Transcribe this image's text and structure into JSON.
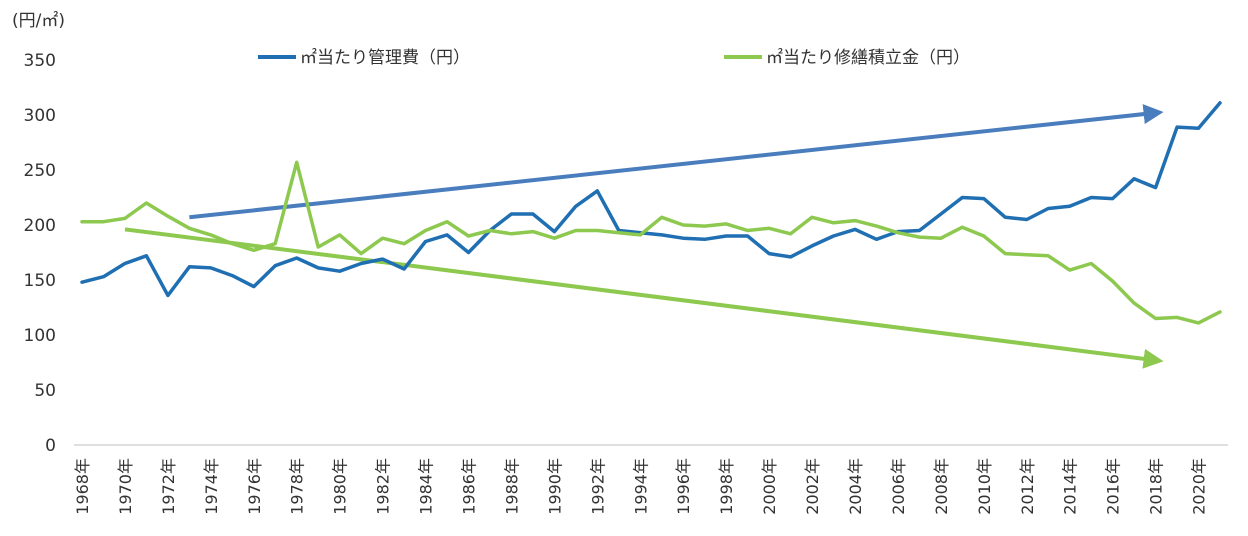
{
  "chart_data": {
    "type": "line",
    "unit_label": "(円/㎡)",
    "ylim": [
      0,
      350
    ],
    "yticks": [
      0,
      50,
      100,
      150,
      200,
      250,
      300,
      350
    ],
    "x": [
      1968,
      1969,
      1970,
      1971,
      1972,
      1973,
      1974,
      1975,
      1976,
      1977,
      1978,
      1979,
      1980,
      1981,
      1982,
      1983,
      1984,
      1985,
      1986,
      1987,
      1988,
      1989,
      1990,
      1991,
      1992,
      1993,
      1994,
      1995,
      1996,
      1997,
      1998,
      1999,
      2000,
      2001,
      2002,
      2003,
      2004,
      2005,
      2006,
      2007,
      2008,
      2009,
      2010,
      2011,
      2012,
      2013,
      2014,
      2015,
      2016,
      2017,
      2018,
      2019,
      2020,
      2021
    ],
    "xtick_labels": [
      "1968年",
      "1970年",
      "1972年",
      "1974年",
      "1976年",
      "1978年",
      "1980年",
      "1982年",
      "1984年",
      "1986年",
      "1988年",
      "1990年",
      "1992年",
      "1994年",
      "1996年",
      "1998年",
      "2000年",
      "2002年",
      "2004年",
      "2006年",
      "2008年",
      "2010年",
      "2012年",
      "2014年",
      "2016年",
      "2018年",
      "2020年"
    ],
    "grid": false,
    "legend_position": "top",
    "series": [
      {
        "name": "㎡当たり管理費（円）",
        "color": "#1f6fb2",
        "values": [
          148,
          153,
          165,
          172,
          136,
          162,
          161,
          154,
          144,
          163,
          170,
          161,
          158,
          165,
          169,
          160,
          185,
          191,
          175,
          195,
          210,
          210,
          194,
          217,
          231,
          195,
          193,
          191,
          188,
          187,
          190,
          190,
          174,
          171,
          181,
          190,
          196,
          187,
          194,
          195,
          210,
          225,
          224,
          207,
          205,
          215,
          217,
          225,
          224,
          242,
          234,
          289,
          288,
          311
        ]
      },
      {
        "name": "㎡当たり修繕積立金（円）",
        "color": "#8dc84f",
        "values": [
          203,
          203,
          206,
          220,
          208,
          197,
          191,
          183,
          177,
          183,
          257,
          180,
          191,
          174,
          188,
          183,
          195,
          203,
          190,
          195,
          192,
          194,
          188,
          195,
          195,
          193,
          191,
          207,
          200,
          199,
          201,
          195,
          197,
          192,
          207,
          202,
          204,
          199,
          193,
          189,
          188,
          198,
          190,
          174,
          173,
          172,
          159,
          165,
          149,
          129,
          115,
          116,
          111,
          121
        ]
      }
    ],
    "trend_arrows": [
      {
        "color": "#4a7dbd",
        "from": [
          1973,
          207
        ],
        "to": [
          2018,
          302
        ]
      },
      {
        "color": "#8dc84f",
        "from": [
          1970,
          196
        ],
        "to": [
          2018,
          77
        ]
      }
    ]
  }
}
